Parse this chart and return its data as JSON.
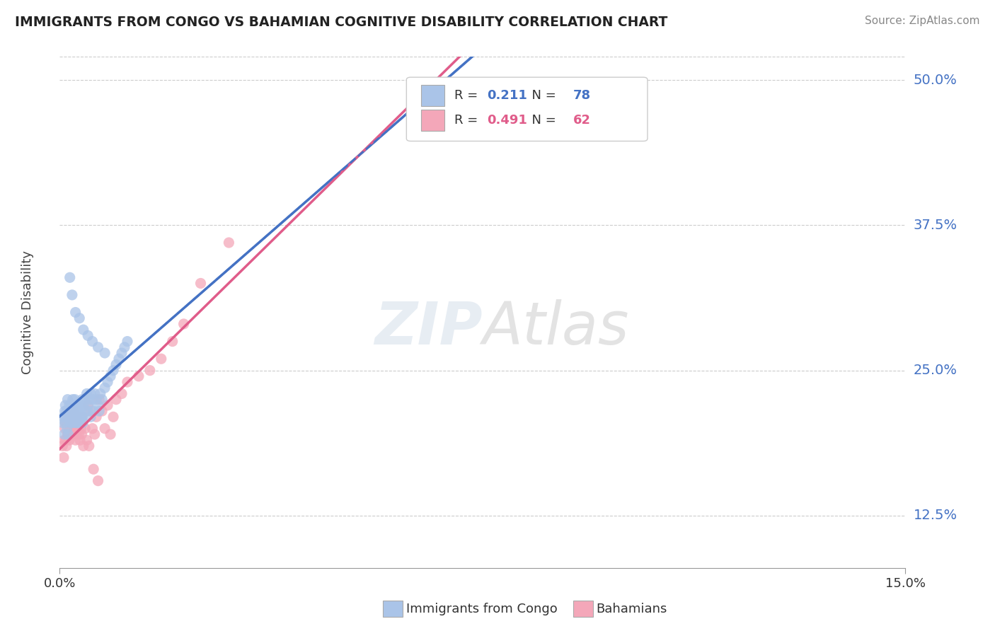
{
  "title": "IMMIGRANTS FROM CONGO VS BAHAMIAN COGNITIVE DISABILITY CORRELATION CHART",
  "source": "Source: ZipAtlas.com",
  "ylabel": "Cognitive Disability",
  "xlim": [
    0.0,
    15.0
  ],
  "ylim": [
    8.0,
    52.0
  ],
  "yticks": [
    12.5,
    25.0,
    37.5,
    50.0
  ],
  "ytick_labels": [
    "12.5%",
    "25.0%",
    "37.5%",
    "50.0%"
  ],
  "xtick_labels": [
    "0.0%",
    "15.0%"
  ],
  "series1_name": "Immigrants from Congo",
  "series1_color": "#aac4e8",
  "series1_line_color": "#4472c4",
  "series1_R": 0.211,
  "series1_N": 78,
  "series2_name": "Bahamians",
  "series2_color": "#f4a7b9",
  "series2_line_color": "#e05c8a",
  "series2_R": 0.491,
  "series2_N": 62,
  "watermark": "ZIPAtlas",
  "background_color": "#ffffff",
  "grid_color": "#cccccc",
  "ytick_colors": [
    "#4472c4",
    "#4472c4",
    "#4472c4",
    "#4472c4"
  ],
  "congo_x": [
    0.05,
    0.07,
    0.08,
    0.09,
    0.1,
    0.1,
    0.11,
    0.12,
    0.13,
    0.14,
    0.15,
    0.15,
    0.16,
    0.17,
    0.18,
    0.19,
    0.2,
    0.2,
    0.21,
    0.22,
    0.23,
    0.24,
    0.25,
    0.25,
    0.26,
    0.27,
    0.28,
    0.29,
    0.3,
    0.3,
    0.31,
    0.32,
    0.33,
    0.34,
    0.35,
    0.35,
    0.36,
    0.37,
    0.38,
    0.39,
    0.4,
    0.4,
    0.41,
    0.42,
    0.45,
    0.46,
    0.48,
    0.5,
    0.5,
    0.52,
    0.55,
    0.55,
    0.58,
    0.6,
    0.62,
    0.65,
    0.68,
    0.7,
    0.72,
    0.75,
    0.8,
    0.85,
    0.9,
    0.95,
    1.0,
    1.05,
    1.1,
    1.15,
    1.2,
    0.18,
    0.22,
    0.28,
    0.35,
    0.42,
    0.5,
    0.58,
    0.68,
    0.8
  ],
  "congo_y": [
    20.5,
    21.0,
    19.5,
    21.5,
    22.0,
    20.5,
    21.0,
    21.5,
    20.0,
    22.5,
    21.0,
    19.5,
    21.5,
    22.0,
    21.0,
    20.5,
    22.0,
    21.0,
    20.5,
    21.5,
    22.5,
    21.0,
    22.0,
    20.5,
    21.0,
    22.5,
    21.5,
    20.5,
    22.0,
    21.0,
    20.5,
    21.5,
    22.0,
    21.5,
    20.5,
    22.0,
    21.0,
    21.5,
    22.0,
    21.0,
    22.5,
    21.0,
    20.5,
    22.0,
    22.5,
    21.5,
    23.0,
    22.0,
    21.5,
    22.5,
    21.0,
    23.0,
    22.5,
    21.5,
    23.0,
    22.5,
    22.0,
    21.5,
    23.0,
    22.5,
    23.5,
    24.0,
    24.5,
    25.0,
    25.5,
    26.0,
    26.5,
    27.0,
    27.5,
    33.0,
    31.5,
    30.0,
    29.5,
    28.5,
    28.0,
    27.5,
    27.0,
    26.5
  ],
  "bahamas_x": [
    0.05,
    0.07,
    0.08,
    0.09,
    0.1,
    0.11,
    0.12,
    0.13,
    0.14,
    0.15,
    0.16,
    0.17,
    0.18,
    0.19,
    0.2,
    0.21,
    0.22,
    0.23,
    0.24,
    0.25,
    0.26,
    0.27,
    0.28,
    0.29,
    0.3,
    0.31,
    0.32,
    0.33,
    0.34,
    0.35,
    0.36,
    0.37,
    0.38,
    0.39,
    0.4,
    0.42,
    0.45,
    0.48,
    0.5,
    0.52,
    0.55,
    0.58,
    0.6,
    0.62,
    0.65,
    0.68,
    0.7,
    0.75,
    0.8,
    0.85,
    0.9,
    0.95,
    1.0,
    1.1,
    1.2,
    1.4,
    1.6,
    1.8,
    2.0,
    2.2,
    2.5,
    3.0
  ],
  "bahamas_y": [
    18.5,
    17.5,
    19.0,
    20.0,
    20.5,
    19.0,
    18.5,
    20.5,
    19.5,
    21.0,
    20.0,
    19.0,
    21.5,
    20.5,
    19.5,
    21.0,
    20.5,
    19.5,
    21.5,
    20.0,
    19.5,
    21.0,
    19.0,
    20.5,
    20.0,
    19.5,
    21.0,
    20.0,
    19.5,
    20.5,
    19.0,
    20.5,
    20.0,
    19.5,
    21.0,
    18.5,
    20.0,
    19.0,
    22.0,
    18.5,
    21.5,
    20.0,
    16.5,
    19.5,
    21.0,
    15.5,
    22.5,
    21.5,
    20.0,
    22.0,
    19.5,
    21.0,
    22.5,
    23.0,
    24.0,
    24.5,
    25.0,
    26.0,
    27.5,
    29.0,
    32.5,
    36.0
  ]
}
